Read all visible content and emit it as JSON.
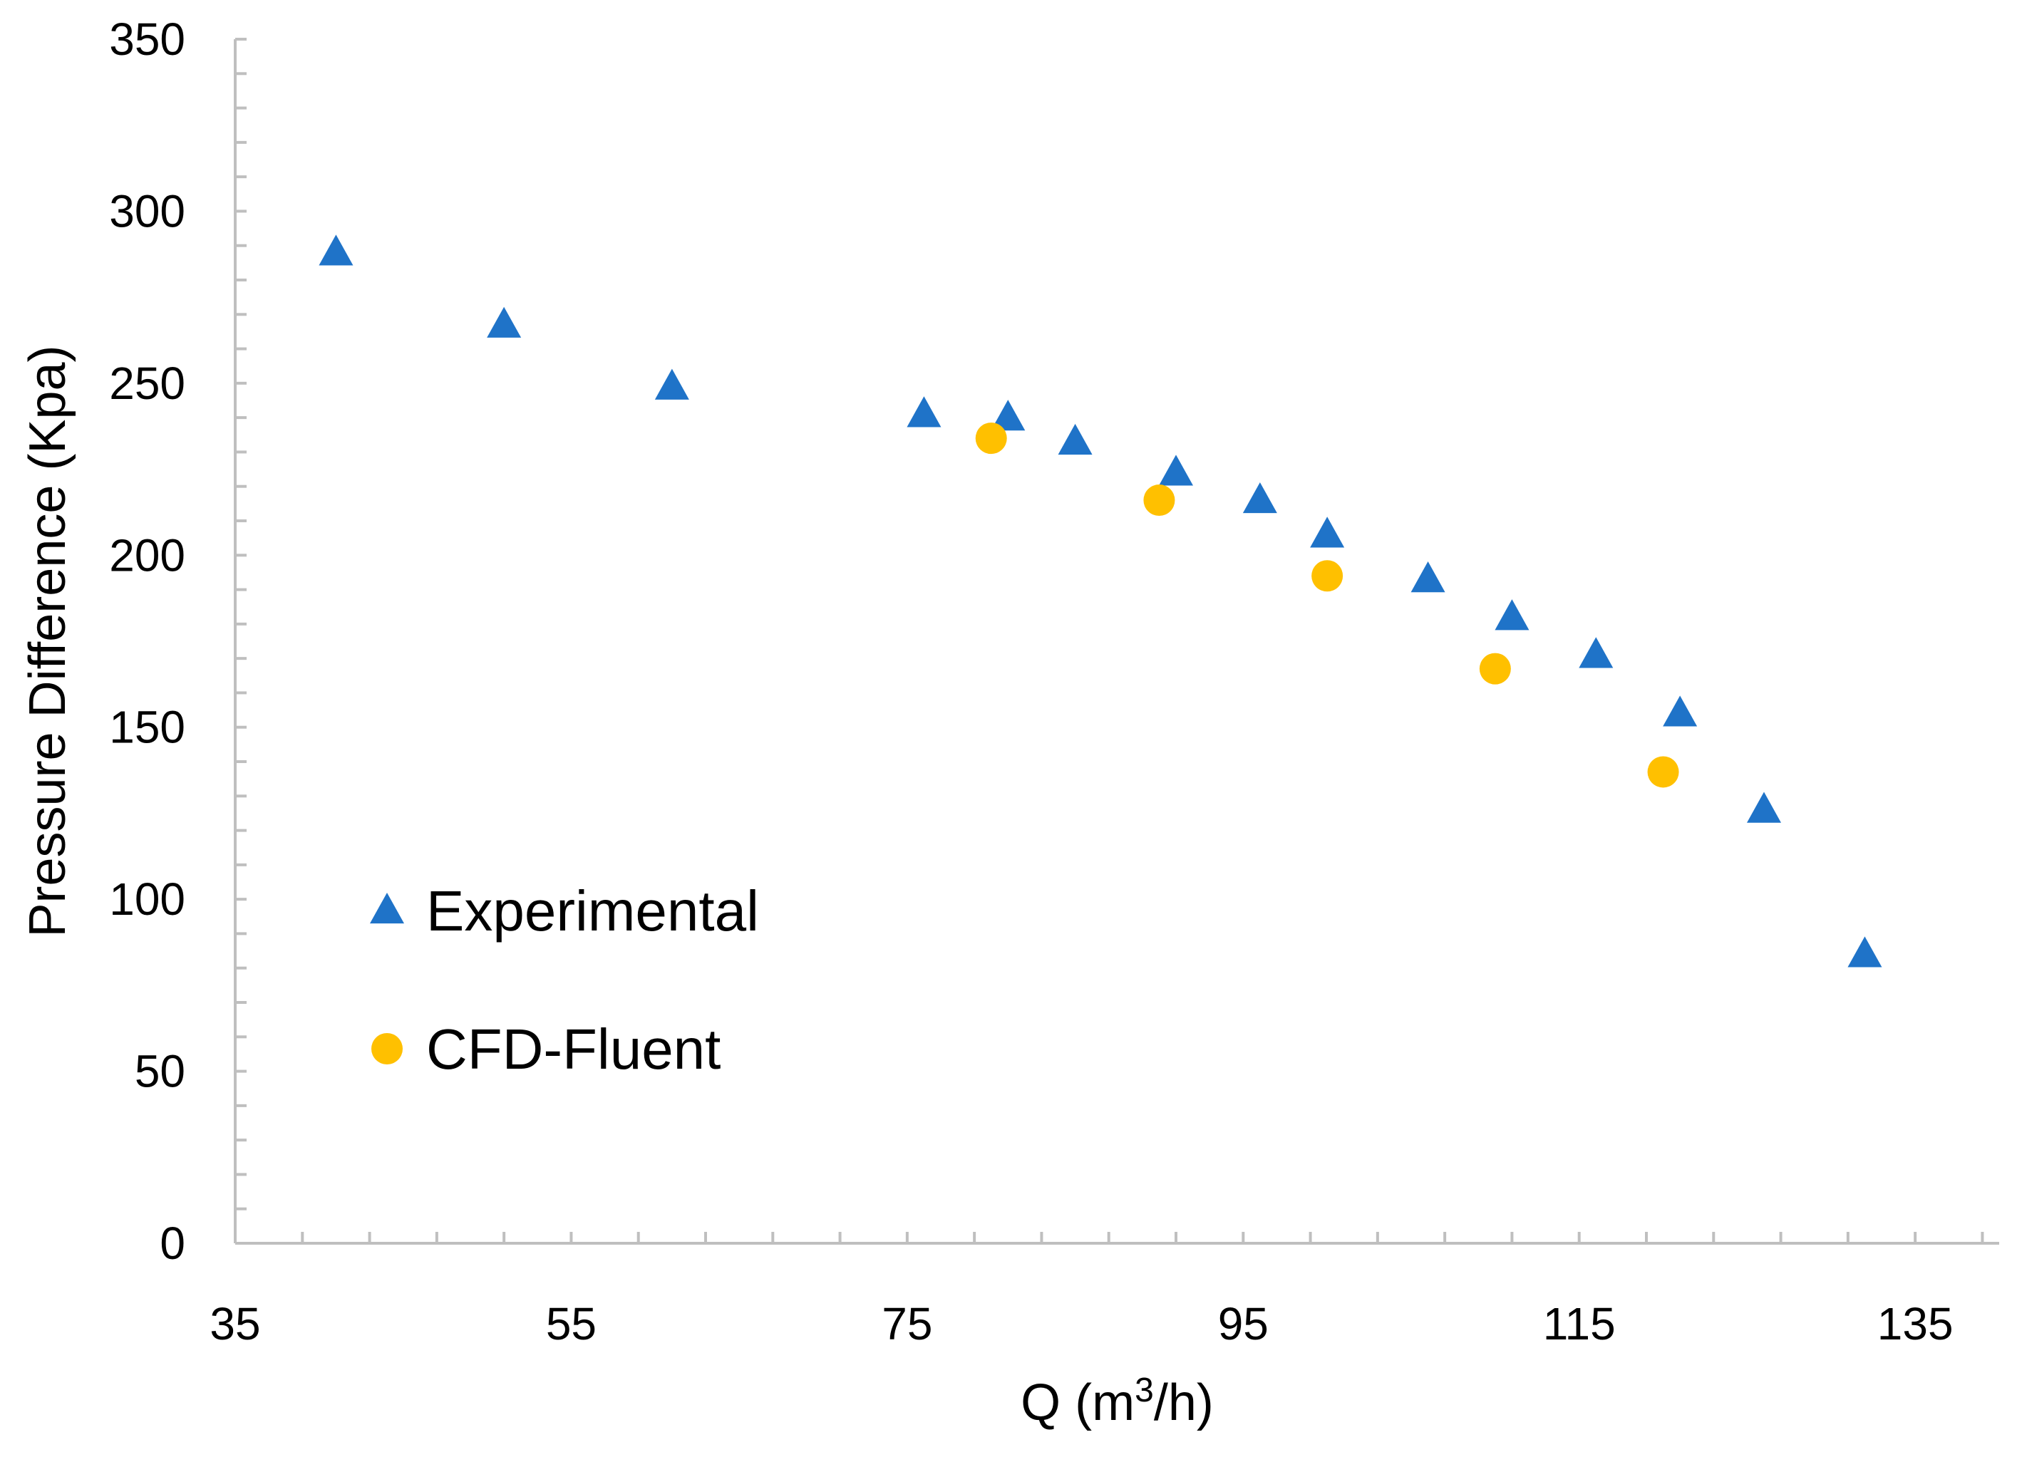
{
  "chart_data": {
    "type": "scatter",
    "title": "",
    "xlabel": "Q (m3/h)",
    "xlabel_parts": {
      "base": "Q (m",
      "sup": "3",
      "tail": "/h)"
    },
    "ylabel": "Pressure Difference (Kpa)",
    "xlim": [
      35,
      140
    ],
    "ylim": [
      0,
      350
    ],
    "x_ticks": [
      35,
      55,
      75,
      95,
      115,
      135
    ],
    "y_ticks": [
      0,
      50,
      100,
      150,
      200,
      250,
      300,
      350
    ],
    "x_minor_step": 4,
    "y_minor_step": 10,
    "grid": false,
    "legend_position": "lower-left",
    "series": [
      {
        "name": "Experimental",
        "marker": "triangle",
        "color": "#1F73C8",
        "x": [
          41,
          51,
          61,
          76,
          81,
          85,
          91,
          96,
          100,
          106,
          111,
          116,
          121,
          126,
          132
        ],
        "y": [
          288,
          267,
          249,
          241,
          240,
          233,
          224,
          216,
          206,
          193,
          182,
          171,
          154,
          126,
          84
        ]
      },
      {
        "name": "CFD-Fluent",
        "marker": "circle",
        "color": "#FFC000",
        "x": [
          80,
          90,
          100,
          110,
          120
        ],
        "y": [
          234,
          216,
          194,
          167,
          137
        ]
      }
    ]
  }
}
